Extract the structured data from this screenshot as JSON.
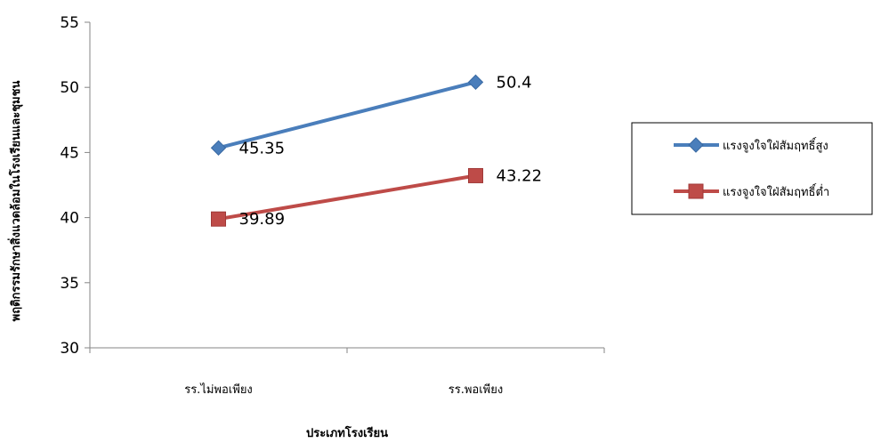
{
  "chart_data": {
    "type": "line",
    "categories": [
      "รร.ไม่พอเพียง",
      "รร.พอเพียง"
    ],
    "series": [
      {
        "name": "แรงจูงใจใฝ่สัมฤทธิ์สูง",
        "values": [
          45.35,
          50.4
        ],
        "color": "#4a7ebb",
        "marker": "diamond"
      },
      {
        "name": "แรงจูงใจใฝ่สัมฤทธิ์ต่ำ",
        "values": [
          39.89,
          43.22
        ],
        "color": "#be4b48",
        "marker": "square"
      }
    ],
    "data_labels": [
      [
        "45.35",
        "50.4"
      ],
      [
        "39.89",
        "43.22"
      ]
    ],
    "xlabel": "ประเภทโรงเรียน",
    "ylabel": "พฤติกรรมรักษาสิ่งแวดล้อมในโรงเรียนและชุมชน",
    "ylim": [
      30,
      55
    ],
    "yticks": [
      30,
      35,
      40,
      45,
      50,
      55
    ],
    "grid": false,
    "legend_position": "right"
  }
}
